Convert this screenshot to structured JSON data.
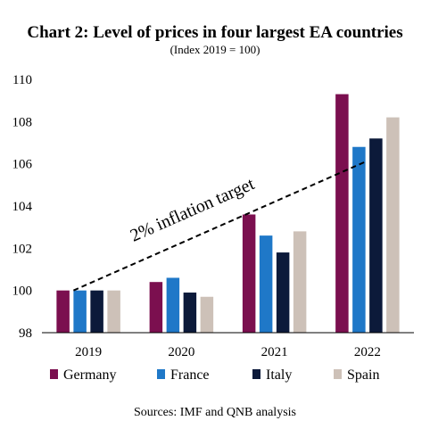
{
  "chart_data": {
    "type": "bar",
    "title": "Chart 2: Level of prices in four largest EA countries",
    "subtitle": "(Index 2019 = 100)",
    "source": "Sources: IMF and QNB analysis",
    "categories": [
      "2019",
      "2020",
      "2021",
      "2022"
    ],
    "series": [
      {
        "name": "Germany",
        "color": "#7b0f4f",
        "values": [
          100.0,
          100.4,
          103.6,
          109.3
        ]
      },
      {
        "name": "France",
        "color": "#1f78c8",
        "values": [
          100.0,
          100.6,
          102.6,
          106.8
        ]
      },
      {
        "name": "Italy",
        "color": "#0c1a3a",
        "values": [
          100.0,
          99.9,
          101.8,
          107.2
        ]
      },
      {
        "name": "Spain",
        "color": "#cdc1b8",
        "values": [
          100.0,
          99.7,
          102.8,
          108.2
        ]
      }
    ],
    "ylim": [
      98,
      110
    ],
    "yticks": [
      98,
      100,
      102,
      104,
      106,
      108,
      110
    ],
    "annotation": {
      "text": "2% inflation target",
      "line": {
        "from": {
          "category": "2019",
          "value": 100.0
        },
        "to": {
          "category": "2022",
          "value": 106.1
        }
      },
      "line_style": "dashed"
    },
    "legend": "bottom",
    "grid": false
  }
}
